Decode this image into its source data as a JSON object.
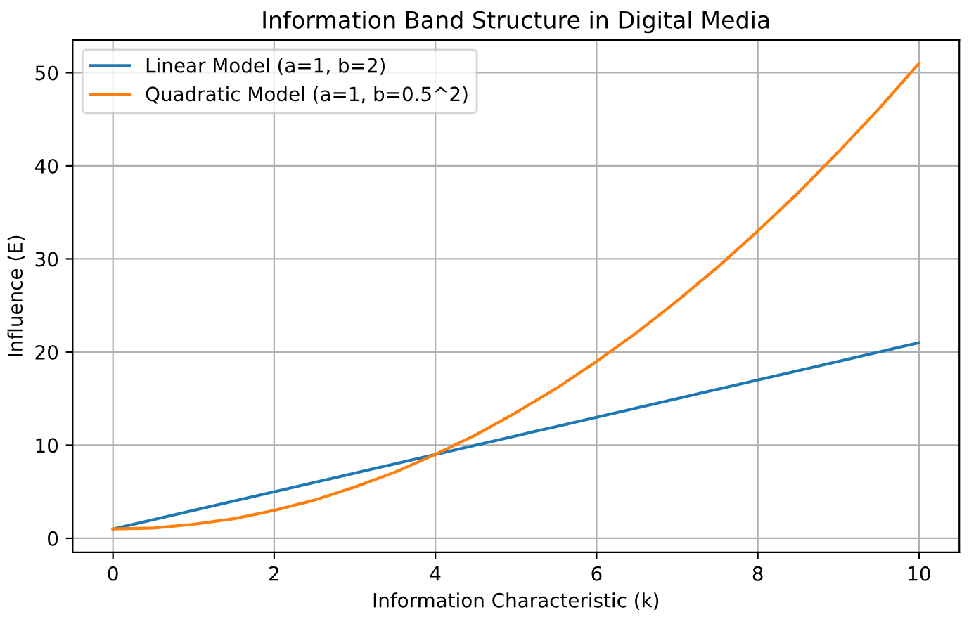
{
  "chart_data": {
    "type": "line",
    "title": "Information Band Structure in Digital Media",
    "xlabel": "Information Characteristic (k)",
    "ylabel": "Influence (E)",
    "x": [
      0,
      0.5,
      1,
      1.5,
      2,
      2.5,
      3,
      3.5,
      4,
      4.5,
      5,
      5.5,
      6,
      6.5,
      7,
      7.5,
      8,
      8.5,
      9,
      9.5,
      10
    ],
    "series": [
      {
        "name": "Linear Model (a=1, b=2)",
        "color": "#1f77b4",
        "values": [
          1,
          2,
          3,
          4,
          5,
          6,
          7,
          8,
          9,
          10,
          11,
          12,
          13,
          14,
          15,
          16,
          17,
          18,
          19,
          20,
          21
        ]
      },
      {
        "name": "Quadratic Model (a=1, b=0.5^2)",
        "color": "#ff7f0e",
        "values": [
          1,
          1.1,
          1.5,
          2.1,
          3,
          4.1,
          5.5,
          7.1,
          9,
          11.1,
          13.5,
          16.1,
          19,
          22.1,
          25.5,
          29.1,
          33,
          37.1,
          41.5,
          46.1,
          51
        ]
      }
    ],
    "xlim": [
      -0.5,
      10.5
    ],
    "ylim": [
      -1.5,
      53.5
    ],
    "xticks": [
      0,
      2,
      4,
      6,
      8,
      10
    ],
    "yticks": [
      0,
      10,
      20,
      30,
      40,
      50
    ],
    "grid": true,
    "legend": "top left"
  }
}
